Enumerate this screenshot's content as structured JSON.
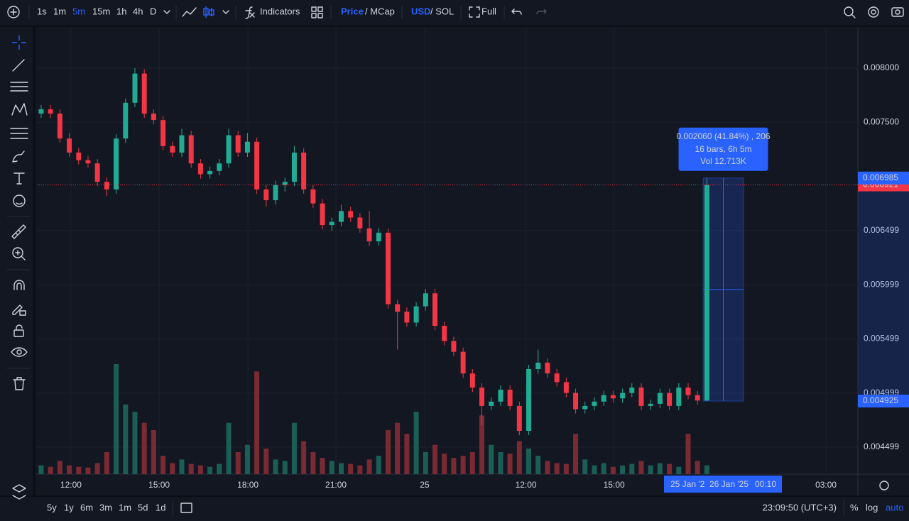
{
  "toolbar": {
    "intervals": [
      "1s",
      "1m",
      "5m",
      "15m",
      "1h",
      "4h",
      "D"
    ],
    "active_interval": "5m",
    "indicators": "Indicators",
    "price": "Price",
    "mcap": "/ MCap",
    "usd": "USD",
    "sol": "/ SOL",
    "full": "Full"
  },
  "chart_data": {
    "type": "candlestick",
    "up_color": "#22ab94",
    "down_color": "#f23645",
    "up_volume_color": "#1b5e55",
    "down_volume_color": "#7a2a33",
    "ylim": [
      0.00425,
      0.00838
    ],
    "yticks": [
      {
        "value": 0.008,
        "label": "0.008000"
      },
      {
        "value": 0.0075,
        "label": "0.007500"
      },
      {
        "value": 0.006499,
        "label": "0.006499"
      },
      {
        "value": 0.005999,
        "label": "0.005999"
      },
      {
        "value": 0.005499,
        "label": "0.005499"
      },
      {
        "value": 0.004999,
        "label": "0.004999"
      },
      {
        "value": 0.004499,
        "label": "0.004499"
      }
    ],
    "xlim": [
      -0.45,
      87.1
    ],
    "xticks": [
      {
        "value": 3.18,
        "label": "12:00"
      },
      {
        "value": 12.58,
        "label": "15:00"
      },
      {
        "value": 22.05,
        "label": "18:00"
      },
      {
        "value": 31.44,
        "label": "21:00"
      },
      {
        "value": 40.9,
        "label": "25"
      },
      {
        "value": 51.7,
        "label": "12:00"
      },
      {
        "value": 61.1,
        "label": "15:00"
      },
      {
        "value": 83.7,
        "label": "03:00"
      }
    ],
    "open": [
      0.00758,
      0.00762,
      0.00758,
      0.00735,
      0.00722,
      0.00715,
      0.00712,
      0.00695,
      0.00688,
      0.00735,
      0.00768,
      0.00795,
      0.00758,
      0.00752,
      0.00728,
      0.00722,
      0.00738,
      0.00712,
      0.00702,
      0.00705,
      0.00712,
      0.00738,
      0.00722,
      0.00732,
      0.00688,
      0.00678,
      0.00692,
      0.00695,
      0.00722,
      0.00688,
      0.00675,
      0.00655,
      0.00658,
      0.00668,
      0.00662,
      0.00652,
      0.0064,
      0.00648,
      0.00582,
      0.00575,
      0.00565,
      0.0058,
      0.00592,
      0.00562,
      0.00548,
      0.00538,
      0.00518,
      0.00505,
      0.00488,
      0.00492,
      0.00503,
      0.00488,
      0.00465,
      0.00522,
      0.00528,
      0.00518,
      0.0051,
      0.005,
      0.00485,
      0.00488,
      0.00492,
      0.00498,
      0.00495,
      0.005,
      0.00505,
      0.00488,
      0.0049,
      0.005,
      0.00488,
      0.00505,
      0.00498,
      0.00493
    ],
    "high": [
      0.00766,
      0.00766,
      0.00762,
      0.0074,
      0.00726,
      0.00719,
      0.00716,
      0.00699,
      0.00739,
      0.00772,
      0.008,
      0.00799,
      0.00762,
      0.00756,
      0.00732,
      0.00744,
      0.00742,
      0.00716,
      0.00709,
      0.00716,
      0.00744,
      0.00742,
      0.0074,
      0.00736,
      0.00692,
      0.00696,
      0.00699,
      0.00728,
      0.00726,
      0.00692,
      0.00679,
      0.00662,
      0.00674,
      0.00672,
      0.00666,
      0.00668,
      0.00652,
      0.00652,
      0.00586,
      0.00579,
      0.00584,
      0.00596,
      0.00596,
      0.00566,
      0.00552,
      0.00542,
      0.00522,
      0.00509,
      0.00496,
      0.00507,
      0.00507,
      0.00492,
      0.00526,
      0.0054,
      0.00532,
      0.00522,
      0.00514,
      0.00504,
      0.00492,
      0.00496,
      0.00502,
      0.00502,
      0.00504,
      0.00509,
      0.00509,
      0.00494,
      0.00504,
      0.00504,
      0.00509,
      0.00509,
      0.00502,
      0.006985
    ],
    "low": [
      0.00754,
      0.00754,
      0.00731,
      0.00718,
      0.00711,
      0.00708,
      0.00691,
      0.00682,
      0.00684,
      0.00731,
      0.00764,
      0.00754,
      0.00748,
      0.00724,
      0.00718,
      0.00718,
      0.00708,
      0.00698,
      0.00698,
      0.00701,
      0.00708,
      0.00718,
      0.00718,
      0.00684,
      0.00672,
      0.00674,
      0.00686,
      0.00691,
      0.00684,
      0.00671,
      0.00651,
      0.0065,
      0.00654,
      0.00658,
      0.00648,
      0.00636,
      0.00636,
      0.00578,
      0.0054,
      0.00561,
      0.00561,
      0.00576,
      0.00558,
      0.00544,
      0.00534,
      0.00514,
      0.00501,
      0.0047,
      0.00484,
      0.00488,
      0.00484,
      0.00461,
      0.00461,
      0.00518,
      0.00514,
      0.00506,
      0.00496,
      0.00481,
      0.00481,
      0.00484,
      0.00488,
      0.00491,
      0.00491,
      0.00496,
      0.00484,
      0.00484,
      0.00486,
      0.00484,
      0.00484,
      0.00494,
      0.00489,
      0.004925
    ],
    "close": [
      0.00762,
      0.00758,
      0.00735,
      0.00722,
      0.00715,
      0.00712,
      0.00695,
      0.00688,
      0.00735,
      0.00768,
      0.00795,
      0.00758,
      0.00752,
      0.00728,
      0.00722,
      0.00738,
      0.00712,
      0.00702,
      0.00705,
      0.00712,
      0.00738,
      0.00722,
      0.00732,
      0.00688,
      0.00678,
      0.00692,
      0.00695,
      0.00722,
      0.00688,
      0.00675,
      0.00655,
      0.00658,
      0.00668,
      0.00662,
      0.00652,
      0.0064,
      0.00648,
      0.00582,
      0.00575,
      0.00565,
      0.0058,
      0.00592,
      0.00562,
      0.00548,
      0.00538,
      0.00518,
      0.00505,
      0.00488,
      0.00492,
      0.00503,
      0.00488,
      0.00465,
      0.00522,
      0.00528,
      0.00518,
      0.0051,
      0.005,
      0.00485,
      0.00488,
      0.00492,
      0.00498,
      0.00495,
      0.005,
      0.00505,
      0.00488,
      0.0049,
      0.005,
      0.00488,
      0.00505,
      0.00498,
      0.00493,
      0.006921
    ],
    "volume": [
      12,
      10,
      18,
      12,
      10,
      9,
      15,
      30,
      150,
      95,
      85,
      70,
      60,
      25,
      15,
      20,
      14,
      12,
      10,
      14,
      70,
      30,
      40,
      140,
      35,
      20,
      18,
      70,
      45,
      30,
      22,
      18,
      15,
      14,
      12,
      20,
      25,
      60,
      70,
      55,
      85,
      30,
      40,
      28,
      22,
      25,
      30,
      80,
      40,
      30,
      28,
      45,
      35,
      25,
      18,
      15,
      14,
      55,
      20,
      12,
      15,
      10,
      12,
      14,
      18,
      12,
      15,
      14,
      10,
      55,
      18,
      12
    ],
    "measure": {
      "summary": "0.002060 (41.84%) , 206",
      "bars": "16 bars, 6h 5m",
      "volume": "Vol 12.713K",
      "start_date": "25 Jan '2",
      "end_date": "26 Jan '25",
      "end_time": "00:10"
    }
  },
  "bottom_bar": {
    "ranges": [
      "5y",
      "1y",
      "6m",
      "3m",
      "1m",
      "5d",
      "1d"
    ],
    "clock": "23:09:50 (UTC+3)",
    "percent": "%",
    "log": "log",
    "auto": "auto"
  }
}
